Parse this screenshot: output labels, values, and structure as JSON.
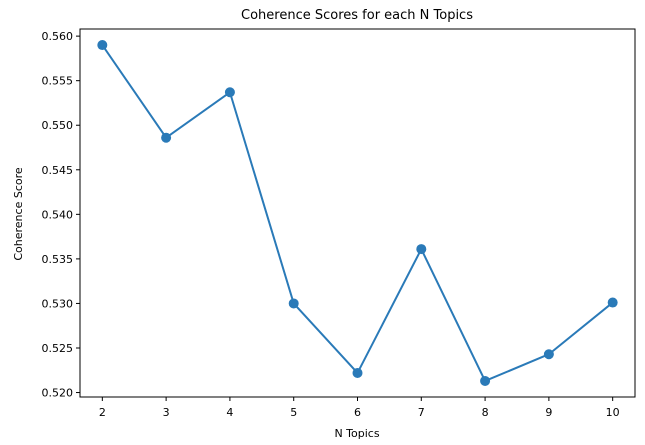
{
  "chart_data": {
    "type": "line",
    "title": "Coherence Scores for each N Topics",
    "xlabel": "N Topics",
    "ylabel": "Coherence Score",
    "x": [
      2,
      3,
      4,
      5,
      6,
      7,
      8,
      9,
      10
    ],
    "series": [
      {
        "values": [
          0.559,
          0.5486,
          0.5537,
          0.53,
          0.5222,
          0.5361,
          0.5213,
          0.5243,
          0.5301
        ],
        "color": "#2a7ab8",
        "marker": "circle"
      }
    ],
    "xticks": [
      "2",
      "3",
      "4",
      "5",
      "6",
      "7",
      "8",
      "9",
      "10"
    ],
    "yticks": [
      "0.520",
      "0.525",
      "0.530",
      "0.535",
      "0.540",
      "0.545",
      "0.550",
      "0.555",
      "0.560"
    ],
    "xlim": [
      1.65,
      10.35
    ],
    "ylim": [
      0.5195,
      0.5608
    ],
    "grid": false,
    "legend": false
  }
}
